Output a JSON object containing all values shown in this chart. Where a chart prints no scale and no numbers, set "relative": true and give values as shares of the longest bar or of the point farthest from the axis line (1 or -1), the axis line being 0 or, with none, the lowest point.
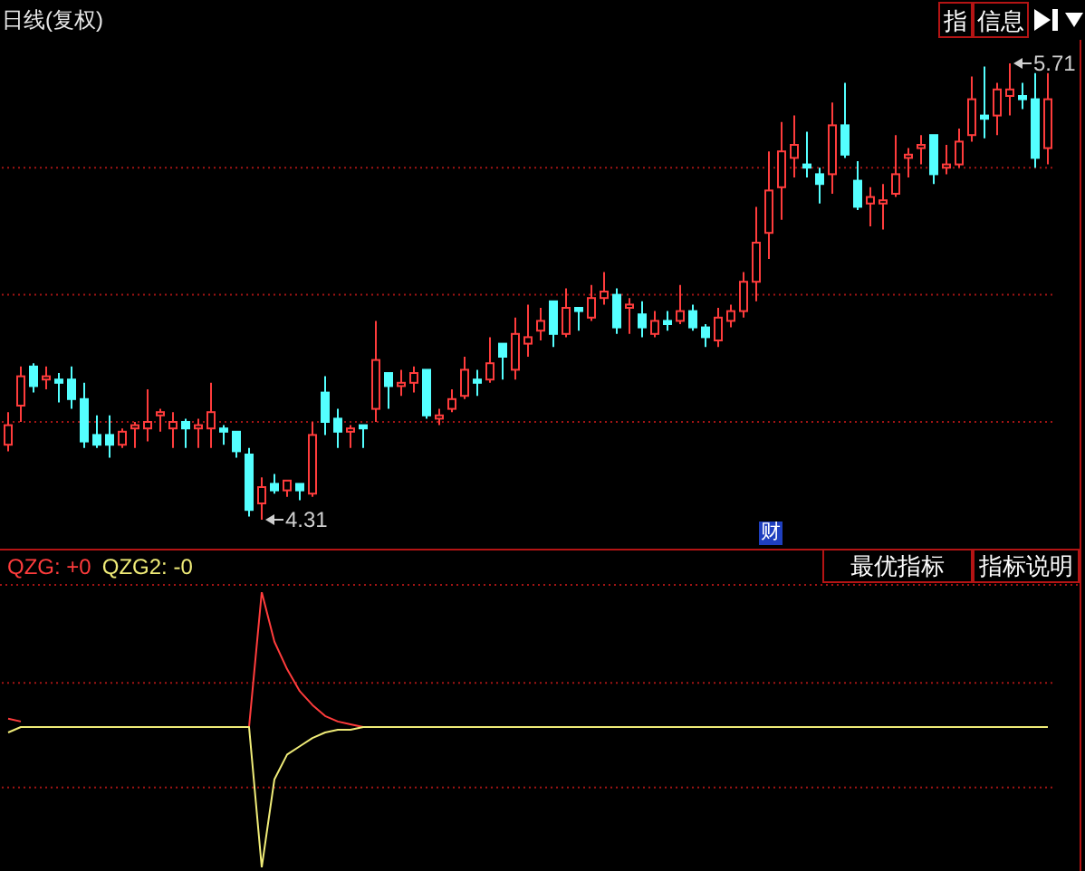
{
  "chart_data": [
    {
      "type": "candlestick",
      "title": "日线(复权)",
      "categories": [
        null,
        null,
        null,
        null,
        null,
        null,
        null,
        null,
        null,
        null,
        null,
        null,
        null,
        null,
        null,
        null,
        null,
        null,
        null,
        null,
        null,
        null,
        null,
        null,
        null,
        null,
        null,
        null,
        null,
        null,
        null,
        null,
        null,
        null,
        null,
        null,
        null,
        null,
        null,
        null,
        null,
        null,
        null,
        null,
        null,
        null,
        null,
        null,
        null,
        null,
        null,
        null,
        null,
        null,
        null,
        null,
        null,
        null,
        null,
        null,
        null,
        null,
        null,
        null,
        null,
        null,
        null,
        null,
        null,
        null,
        null,
        null,
        null,
        null,
        null,
        null,
        null,
        null,
        null,
        null,
        null,
        null,
        null
      ],
      "ohlc": [
        [
          4.54,
          4.64,
          4.52,
          4.6
        ],
        [
          4.66,
          4.78,
          4.61,
          4.75
        ],
        [
          4.78,
          4.79,
          4.7,
          4.72
        ],
        [
          4.74,
          4.78,
          4.71,
          4.75
        ],
        [
          4.74,
          4.76,
          4.67,
          4.73
        ],
        [
          4.74,
          4.78,
          4.65,
          4.68
        ],
        [
          4.68,
          4.73,
          4.53,
          4.55
        ],
        [
          4.57,
          4.63,
          4.53,
          4.54
        ],
        [
          4.57,
          4.63,
          4.5,
          4.54
        ],
        [
          4.54,
          4.59,
          4.53,
          4.58
        ],
        [
          4.59,
          4.61,
          4.53,
          4.6
        ],
        [
          4.59,
          4.71,
          4.55,
          4.61
        ],
        [
          4.63,
          4.65,
          4.58,
          4.64
        ],
        [
          4.59,
          4.64,
          4.53,
          4.61
        ],
        [
          4.61,
          4.62,
          4.53,
          4.59
        ],
        [
          4.59,
          4.62,
          4.53,
          4.6
        ],
        [
          4.59,
          4.73,
          4.53,
          4.64
        ],
        [
          4.59,
          4.6,
          4.54,
          4.58
        ],
        [
          4.58,
          4.58,
          4.5,
          4.52
        ],
        [
          4.51,
          4.53,
          4.32,
          4.34
        ],
        [
          4.36,
          4.44,
          4.31,
          4.41
        ],
        [
          4.42,
          4.45,
          4.39,
          4.4
        ],
        [
          4.4,
          4.43,
          4.38,
          4.43
        ],
        [
          4.42,
          4.42,
          4.37,
          4.4
        ],
        [
          4.39,
          4.61,
          4.38,
          4.57
        ],
        [
          4.7,
          4.75,
          4.57,
          4.61
        ],
        [
          4.62,
          4.65,
          4.53,
          4.58
        ],
        [
          4.58,
          4.6,
          4.53,
          4.59
        ],
        [
          4.6,
          4.6,
          4.53,
          4.59
        ],
        [
          4.65,
          4.92,
          4.61,
          4.8
        ],
        [
          4.76,
          4.76,
          4.65,
          4.72
        ],
        [
          4.72,
          4.77,
          4.69,
          4.73
        ],
        [
          4.73,
          4.78,
          4.7,
          4.76
        ],
        [
          4.77,
          4.77,
          4.62,
          4.63
        ],
        [
          4.62,
          4.65,
          4.6,
          4.63
        ],
        [
          4.65,
          4.71,
          4.64,
          4.68
        ],
        [
          4.69,
          4.81,
          4.68,
          4.77
        ],
        [
          4.74,
          4.77,
          4.69,
          4.73
        ],
        [
          4.74,
          4.87,
          4.73,
          4.79
        ],
        [
          4.85,
          4.85,
          4.74,
          4.81
        ],
        [
          4.77,
          4.93,
          4.74,
          4.88
        ],
        [
          4.85,
          4.97,
          4.81,
          4.87
        ],
        [
          4.89,
          4.96,
          4.86,
          4.92
        ],
        [
          4.98,
          4.98,
          4.84,
          4.88
        ],
        [
          4.88,
          5.02,
          4.87,
          4.96
        ],
        [
          4.96,
          4.96,
          4.89,
          4.95
        ],
        [
          4.93,
          5.03,
          4.92,
          4.99
        ],
        [
          4.99,
          5.07,
          4.97,
          5.01
        ],
        [
          5.0,
          5.02,
          4.88,
          4.9
        ],
        [
          4.96,
          4.99,
          4.88,
          4.97
        ],
        [
          4.94,
          4.98,
          4.87,
          4.9
        ],
        [
          4.88,
          4.95,
          4.87,
          4.92
        ],
        [
          4.92,
          4.95,
          4.89,
          4.91
        ],
        [
          4.92,
          5.03,
          4.91,
          4.95
        ],
        [
          4.95,
          4.97,
          4.89,
          4.9
        ],
        [
          4.9,
          4.91,
          4.84,
          4.87
        ],
        [
          4.86,
          4.96,
          4.84,
          4.93
        ],
        [
          4.92,
          4.97,
          4.9,
          4.95
        ],
        [
          4.95,
          5.07,
          4.93,
          5.04
        ],
        [
          5.04,
          5.27,
          4.98,
          5.16
        ],
        [
          5.19,
          5.44,
          5.11,
          5.32
        ],
        [
          5.33,
          5.53,
          5.23,
          5.44
        ],
        [
          5.42,
          5.55,
          5.36,
          5.46
        ],
        [
          5.4,
          5.5,
          5.36,
          5.39
        ],
        [
          5.37,
          5.39,
          5.28,
          5.34
        ],
        [
          5.37,
          5.59,
          5.31,
          5.52
        ],
        [
          5.52,
          5.65,
          5.42,
          5.43
        ],
        [
          5.35,
          5.41,
          5.26,
          5.27
        ],
        [
          5.28,
          5.33,
          5.21,
          5.3
        ],
        [
          5.28,
          5.34,
          5.2,
          5.29
        ],
        [
          5.31,
          5.49,
          5.3,
          5.37
        ],
        [
          5.42,
          5.45,
          5.36,
          5.43
        ],
        [
          5.45,
          5.49,
          5.4,
          5.46
        ],
        [
          5.49,
          5.49,
          5.34,
          5.37
        ],
        [
          5.39,
          5.46,
          5.37,
          5.4
        ],
        [
          5.4,
          5.51,
          5.39,
          5.47
        ],
        [
          5.49,
          5.67,
          5.47,
          5.6
        ],
        [
          5.55,
          5.7,
          5.48,
          5.54
        ],
        [
          5.55,
          5.65,
          5.49,
          5.63
        ],
        [
          5.61,
          5.71,
          5.55,
          5.63
        ],
        [
          5.61,
          5.65,
          5.57,
          5.6
        ],
        [
          5.6,
          5.68,
          5.39,
          5.42
        ],
        [
          5.45,
          5.68,
          5.4,
          5.6
        ]
      ],
      "colors": [
        "#ff3c3c",
        "#ff3c3c",
        "#54ffff",
        "#ff3c3c",
        "#54ffff",
        "#54ffff",
        "#54ffff",
        "#54ffff",
        "#54ffff",
        "#ff3c3c",
        "#ff3c3c",
        "#ff3c3c",
        "#ff3c3c",
        "#ff3c3c",
        "#54ffff",
        "#ff3c3c",
        "#ff3c3c",
        "#54ffff",
        "#54ffff",
        "#54ffff",
        "#ff3c3c",
        "#54ffff",
        "#ff3c3c",
        "#54ffff",
        "#ff3c3c",
        "#54ffff",
        "#54ffff",
        "#ff3c3c",
        "#54ffff",
        "#ff3c3c",
        "#54ffff",
        "#ff3c3c",
        "#ff3c3c",
        "#54ffff",
        "#ff3c3c",
        "#ff3c3c",
        "#ff3c3c",
        "#54ffff",
        "#ff3c3c",
        "#54ffff",
        "#ff3c3c",
        "#ff3c3c",
        "#ff3c3c",
        "#54ffff",
        "#ff3c3c",
        "#54ffff",
        "#ff3c3c",
        "#ff3c3c",
        "#54ffff",
        "#ff3c3c",
        "#54ffff",
        "#ff3c3c",
        "#54ffff",
        "#ff3c3c",
        "#54ffff",
        "#54ffff",
        "#ff3c3c",
        "#ff3c3c",
        "#ff3c3c",
        "#ff3c3c",
        "#ff3c3c",
        "#ff3c3c",
        "#ff3c3c",
        "#54ffff",
        "#54ffff",
        "#ff3c3c",
        "#54ffff",
        "#54ffff",
        "#ff3c3c",
        "#ff3c3c",
        "#ff3c3c",
        "#ff3c3c",
        "#ff3c3c",
        "#54ffff",
        "#ff3c3c",
        "#ff3c3c",
        "#ff3c3c",
        "#54ffff",
        "#ff3c3c",
        "#ff3c3c",
        "#54ffff",
        "#54ffff",
        "#ff3c3c"
      ],
      "annotations": [
        "4.31",
        "5.71",
        "财",
        "指",
        "信息"
      ],
      "yticks": [
        {
          "value": 4.61,
          "label": null
        },
        {
          "value": 5.0,
          "label": null
        },
        {
          "value": 5.39,
          "label": null
        }
      ],
      "grid": "y",
      "tick_labels": false
    },
    {
      "type": "line",
      "relative": true,
      "categories": [
        null,
        null,
        null,
        null,
        null,
        null,
        null,
        null,
        null,
        null,
        null,
        null,
        null,
        null,
        null,
        null,
        null,
        null,
        null,
        null,
        null,
        null,
        null,
        null,
        null,
        null,
        null,
        null,
        null,
        null,
        null,
        null,
        null,
        null,
        null,
        null,
        null,
        null,
        null,
        null,
        null,
        null,
        null,
        null,
        null,
        null,
        null,
        null,
        null,
        null,
        null,
        null,
        null,
        null,
        null,
        null,
        null,
        null,
        null,
        null,
        null,
        null,
        null,
        null,
        null,
        null,
        null,
        null,
        null,
        null,
        null,
        null,
        null,
        null,
        null,
        null,
        null,
        null,
        null,
        null,
        null,
        null,
        null
      ],
      "series": [
        {
          "name": "QZG: +0",
          "color": "#ff3c3c",
          "values": [
            0.54,
            0.53,
            null,
            null,
            null,
            null,
            null,
            null,
            null,
            null,
            null,
            null,
            null,
            null,
            null,
            null,
            null,
            null,
            null,
            0.51,
            1,
            0.82,
            0.72,
            0.64,
            0.59,
            0.55,
            0.53,
            0.52,
            0.51,
            null,
            null,
            null,
            null,
            null,
            null,
            null,
            null,
            null,
            null,
            null,
            null,
            null,
            null,
            null,
            null,
            null,
            null,
            null,
            null,
            null,
            null,
            null,
            null,
            null,
            null,
            null,
            null,
            null,
            null,
            null,
            null,
            null,
            null,
            null,
            null,
            null,
            null,
            null,
            null,
            null,
            null,
            null,
            null,
            null,
            null,
            null,
            null,
            null,
            null,
            null,
            null,
            null,
            null
          ]
        },
        {
          "name": "QZG2: -0",
          "color": "#f0ec78",
          "values": [
            0.49,
            0.51,
            0.51,
            0.51,
            0.51,
            0.51,
            0.51,
            0.51,
            0.51,
            0.51,
            0.51,
            0.51,
            0.51,
            0.51,
            0.51,
            0.51,
            0.51,
            0.51,
            0.51,
            0.51,
            0,
            0.32,
            0.41,
            0.44,
            0.47,
            0.49,
            0.5,
            0.5,
            0.51,
            0.51,
            0.51,
            0.51,
            0.51,
            0.51,
            0.51,
            0.51,
            0.51,
            0.51,
            0.51,
            0.51,
            0.51,
            0.51,
            0.51,
            0.51,
            0.51,
            0.51,
            0.51,
            0.51,
            0.51,
            0.51,
            0.51,
            0.51,
            0.51,
            0.51,
            0.51,
            0.51,
            0.51,
            0.51,
            0.51,
            0.51,
            0.51,
            0.51,
            0.51,
            0.51,
            0.51,
            0.51,
            0.51,
            0.51,
            0.51,
            0.51,
            0.51,
            0.51,
            0.51,
            0.51,
            0.51,
            0.51,
            0.51,
            0.51,
            0.51,
            0.51,
            0.51,
            0.51,
            0.51
          ]
        }
      ],
      "ref_lines": [
        {
          "axis": "y",
          "value": 0.67,
          "color": "#a01414",
          "line_style": "dotted"
        },
        {
          "axis": "y",
          "value": 0.29,
          "color": "#a01414",
          "line_style": "dotted"
        }
      ],
      "annotations": [
        "最优指标",
        "指标说明"
      ],
      "legend": "top left",
      "marker": "none",
      "tick_labels": false
    }
  ]
}
